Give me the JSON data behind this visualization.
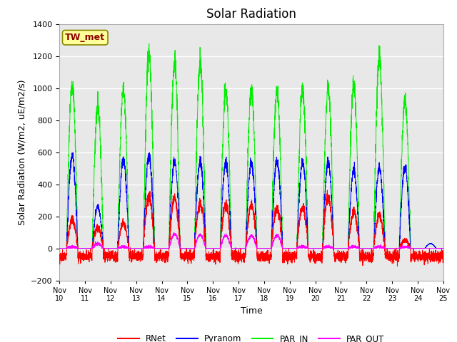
{
  "title": "Solar Radiation",
  "ylabel": "Solar Radiation (W/m2, uE/m2/s)",
  "xlabel": "Time",
  "ylim": [
    -200,
    1400
  ],
  "yticks": [
    -200,
    0,
    200,
    400,
    600,
    800,
    1000,
    1200,
    1400
  ],
  "xlim": [
    0,
    15
  ],
  "colors": {
    "RNet": "#ff0000",
    "Pyranom": "#0000ff",
    "PAR_IN": "#00ee00",
    "PAR_OUT": "#ff00ff"
  },
  "legend_labels": [
    "RNet",
    "Pyranom",
    "PAR_IN",
    "PAR_OUT"
  ],
  "annotation_text": "TW_met",
  "annotation_color": "#8b0000",
  "annotation_bg": "#ffff99",
  "annotation_border": "#888800",
  "background_color": "#e8e8e8",
  "grid_color": "#ffffff",
  "xtick_labels": [
    "Nov 10",
    "Nov 11",
    "Nov 12",
    "Nov 13",
    "Nov 14",
    "Nov 15",
    "Nov 16",
    "Nov 17",
    "Nov 18",
    "Nov 19",
    "Nov 20",
    "Nov 21",
    "Nov 22",
    "Nov 23",
    "Nov 24",
    "Nov 25"
  ],
  "num_days": 15,
  "pts_per_day": 288,
  "par_in_peaks": [
    1030,
    880,
    990,
    1220,
    1160,
    1160,
    990,
    990,
    990,
    990,
    1000,
    1030,
    1200,
    920,
    30
  ],
  "pyranom_peaks": [
    580,
    260,
    550,
    580,
    540,
    540,
    530,
    540,
    550,
    540,
    540,
    490,
    500,
    510,
    30
  ],
  "rnet_peaks": [
    180,
    130,
    160,
    320,
    310,
    280,
    270,
    270,
    250,
    250,
    320,
    230,
    210,
    50,
    0
  ],
  "par_out_peaks": [
    10,
    30,
    10,
    10,
    90,
    85,
    80,
    80,
    80,
    10,
    10,
    10,
    10,
    10,
    0
  ],
  "rnet_night": -50,
  "title_fontsize": 12,
  "axis_fontsize": 9,
  "tick_fontsize": 8
}
